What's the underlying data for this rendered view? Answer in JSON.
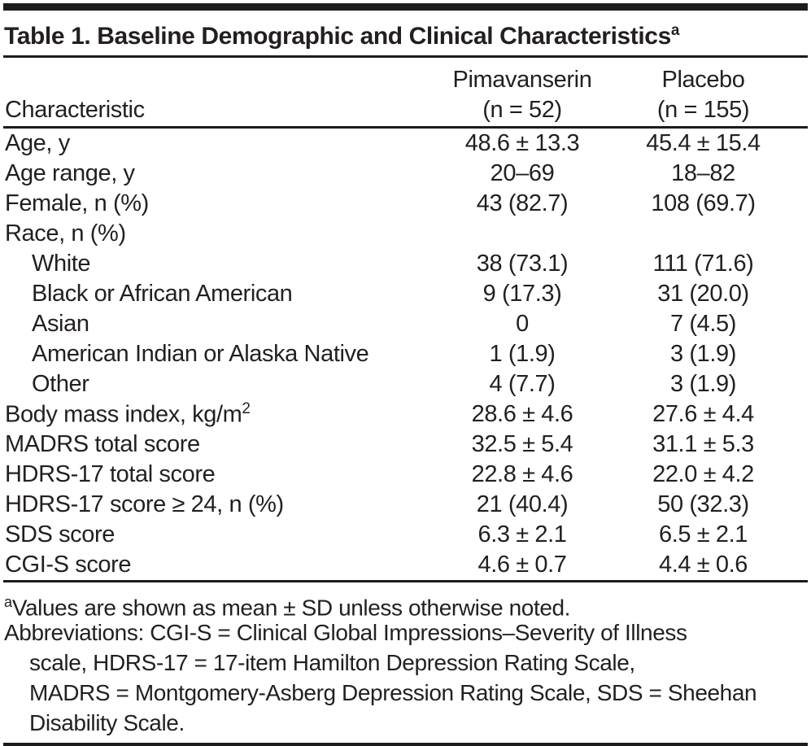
{
  "table": {
    "title": "Table 1. Baseline Demographic and Clinical Characteristics",
    "title_superscript": "a",
    "columns": {
      "characteristic": "Characteristic",
      "group1_line1": "Pimavanserin",
      "group1_line2": "(n = 52)",
      "group2_line1": "Placebo",
      "group2_line2": "(n = 155)"
    },
    "rows": [
      {
        "label": "Age, y",
        "pimavanserin": "48.6 ± 13.3",
        "placebo": "45.4 ± 15.4",
        "indent": false
      },
      {
        "label": "Age range, y",
        "pimavanserin": "20–69",
        "placebo": "18–82",
        "indent": false
      },
      {
        "label": "Female, n (%)",
        "pimavanserin": "43 (82.7)",
        "placebo": "108 (69.7)",
        "indent": false
      },
      {
        "label": "Race, n (%)",
        "pimavanserin": "",
        "placebo": "",
        "indent": false
      },
      {
        "label": "White",
        "pimavanserin": "38 (73.1)",
        "placebo": "111 (71.6)",
        "indent": true
      },
      {
        "label": "Black or African American",
        "pimavanserin": "9 (17.3)",
        "placebo": "31 (20.0)",
        "indent": true
      },
      {
        "label": "Asian",
        "pimavanserin": "0",
        "placebo": "7 (4.5)",
        "indent": true
      },
      {
        "label": "American Indian or Alaska Native",
        "pimavanserin": "1 (1.9)",
        "placebo": "3 (1.9)",
        "indent": true
      },
      {
        "label": "Other",
        "pimavanserin": "4 (7.7)",
        "placebo": "3 (1.9)",
        "indent": true
      },
      {
        "label": "Body mass index, kg/m",
        "label_sup": "2",
        "pimavanserin": "28.6 ± 4.6",
        "placebo": "27.6 ± 4.4",
        "indent": false
      },
      {
        "label": "MADRS total score",
        "pimavanserin": "32.5 ± 5.4",
        "placebo": "31.1 ± 5.3",
        "indent": false
      },
      {
        "label": "HDRS-17 total score",
        "pimavanserin": "22.8 ± 4.6",
        "placebo": "22.0 ± 4.2",
        "indent": false
      },
      {
        "label": "HDRS-17 score ≥ 24, n (%)",
        "pimavanserin": "21 (40.4)",
        "placebo": "50 (32.3)",
        "indent": false
      },
      {
        "label": "SDS score",
        "pimavanserin": "6.3 ± 2.1",
        "placebo": "6.5 ± 2.1",
        "indent": false
      },
      {
        "label": "CGI-S score",
        "pimavanserin": "4.6 ± 0.7",
        "placebo": "4.4 ± 0.6",
        "indent": false
      }
    ],
    "footnotes": [
      {
        "sup": "a",
        "text": "Values are shown as mean ± SD unless otherwise noted.",
        "indent": false
      },
      {
        "sup": "",
        "text": "Abbreviations: CGI-S = Clinical Global Impressions–Severity of Illness",
        "indent": false
      },
      {
        "sup": "",
        "text": "scale, HDRS-17 = 17-item Hamilton Depression Rating Scale,",
        "indent": true
      },
      {
        "sup": "",
        "text": "MADRS = Montgomery-Asberg Depression Rating Scale, SDS = Sheehan",
        "indent": true
      },
      {
        "sup": "",
        "text": "Disability Scale.",
        "indent": true
      }
    ],
    "colors": {
      "text": "#231f20",
      "rule": "#1c1c1c",
      "background": "#ffffff"
    }
  }
}
